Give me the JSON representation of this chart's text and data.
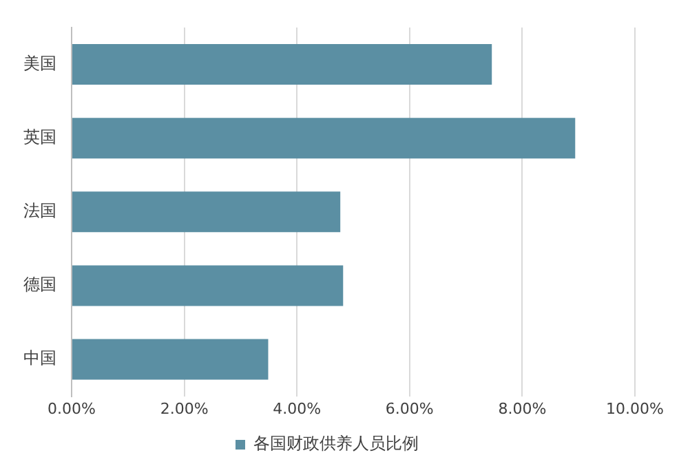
{
  "chart_data": {
    "type": "bar",
    "orientation": "horizontal",
    "categories": [
      "美国",
      "英国",
      "法国",
      "德国",
      "中国"
    ],
    "series": [
      {
        "name": "各国财政供养人员比例",
        "color": "#5b8fa3",
        "values": [
          7.46,
          8.94,
          4.77,
          4.82,
          3.49
        ]
      }
    ],
    "xlim": [
      0,
      10
    ],
    "xticks": [
      {
        "value": 0,
        "label": "0.00%"
      },
      {
        "value": 2,
        "label": "2.00%"
      },
      {
        "value": 4,
        "label": "4.00%"
      },
      {
        "value": 6,
        "label": "6.00%"
      },
      {
        "value": 8,
        "label": "8.00%"
      },
      {
        "value": 10,
        "label": "10.00%"
      }
    ],
    "grid": "x",
    "legend": "bottom"
  }
}
